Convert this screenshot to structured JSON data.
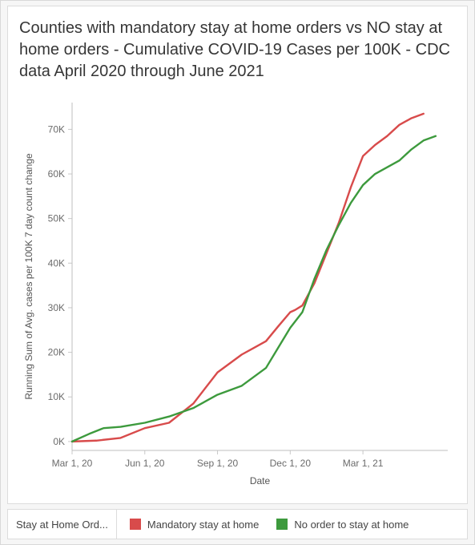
{
  "title": "Counties with mandatory stay at home orders vs NO stay at home orders - Cumulative  COVID-19 Cases per 100K - CDC data April 2020 through June 2021",
  "chart": {
    "type": "line",
    "background_color": "#ffffff",
    "card_border_color": "#dcdcdc",
    "title_fontsize": 20,
    "title_color": "#363636",
    "x_axis": {
      "title": "Date",
      "title_fontsize": 12,
      "min": 0,
      "max": 15.5,
      "ticks": [
        {
          "pos": 0,
          "label": "Mar 1, 20"
        },
        {
          "pos": 3,
          "label": "Jun 1, 20"
        },
        {
          "pos": 6,
          "label": "Sep 1, 20"
        },
        {
          "pos": 9,
          "label": "Dec 1, 20"
        },
        {
          "pos": 12,
          "label": "Mar 1, 21"
        }
      ],
      "tick_label_fontsize": 12,
      "tick_color": "#6b6b6b"
    },
    "y_axis": {
      "title": "Running Sum of Avg. cases per 100K 7 day count change",
      "title_fontsize": 12,
      "min": -2000,
      "max": 76000,
      "ticks": [
        {
          "pos": 0,
          "label": "0K"
        },
        {
          "pos": 10000,
          "label": "10K"
        },
        {
          "pos": 20000,
          "label": "20K"
        },
        {
          "pos": 30000,
          "label": "30K"
        },
        {
          "pos": 40000,
          "label": "40K"
        },
        {
          "pos": 50000,
          "label": "50K"
        },
        {
          "pos": 60000,
          "label": "60K"
        },
        {
          "pos": 70000,
          "label": "70K"
        }
      ],
      "tick_label_fontsize": 12,
      "tick_color": "#6b6b6b"
    },
    "axis_line_color": "#bfbfbf",
    "tick_mark_color": "#c8c8c8",
    "series": [
      {
        "name": "Mandatory stay at home",
        "color": "#d84b4b",
        "stroke_width": 2.4,
        "points": [
          [
            0,
            0
          ],
          [
            1,
            200
          ],
          [
            2,
            800
          ],
          [
            3,
            3000
          ],
          [
            4,
            4200
          ],
          [
            5,
            8500
          ],
          [
            6,
            15500
          ],
          [
            7,
            19500
          ],
          [
            7.5,
            21000
          ],
          [
            8,
            22500
          ],
          [
            8.5,
            25800
          ],
          [
            9,
            29000
          ],
          [
            9.2,
            29500
          ],
          [
            9.5,
            30500
          ],
          [
            10,
            35500
          ],
          [
            11,
            49000
          ],
          [
            11.5,
            57000
          ],
          [
            12,
            64000
          ],
          [
            12.5,
            66500
          ],
          [
            13,
            68500
          ],
          [
            13.5,
            71000
          ],
          [
            14,
            72500
          ],
          [
            14.5,
            73500
          ]
        ]
      },
      {
        "name": "No order to stay at home",
        "color": "#3d9a3d",
        "stroke_width": 2.4,
        "points": [
          [
            0,
            0
          ],
          [
            0.7,
            1700
          ],
          [
            1.3,
            3000
          ],
          [
            2,
            3300
          ],
          [
            3,
            4200
          ],
          [
            4,
            5600
          ],
          [
            5,
            7500
          ],
          [
            6,
            10500
          ],
          [
            7,
            12500
          ],
          [
            8,
            16500
          ],
          [
            8.5,
            21000
          ],
          [
            9,
            25500
          ],
          [
            9.5,
            29000
          ],
          [
            10,
            36500
          ],
          [
            10.5,
            43000
          ],
          [
            11,
            48500
          ],
          [
            11.5,
            53500
          ],
          [
            12,
            57500
          ],
          [
            12.5,
            60000
          ],
          [
            13,
            61500
          ],
          [
            13.5,
            63000
          ],
          [
            14,
            65500
          ],
          [
            14.5,
            67500
          ],
          [
            15,
            68500
          ]
        ]
      }
    ]
  },
  "legend": {
    "title": "Stay at Home Ord...",
    "items": [
      {
        "label": "Mandatory stay at home",
        "color": "#d84b4b"
      },
      {
        "label": "No order to stay at home",
        "color": "#3d9a3d"
      }
    ],
    "fontsize": 13,
    "swatch_size": 14
  }
}
